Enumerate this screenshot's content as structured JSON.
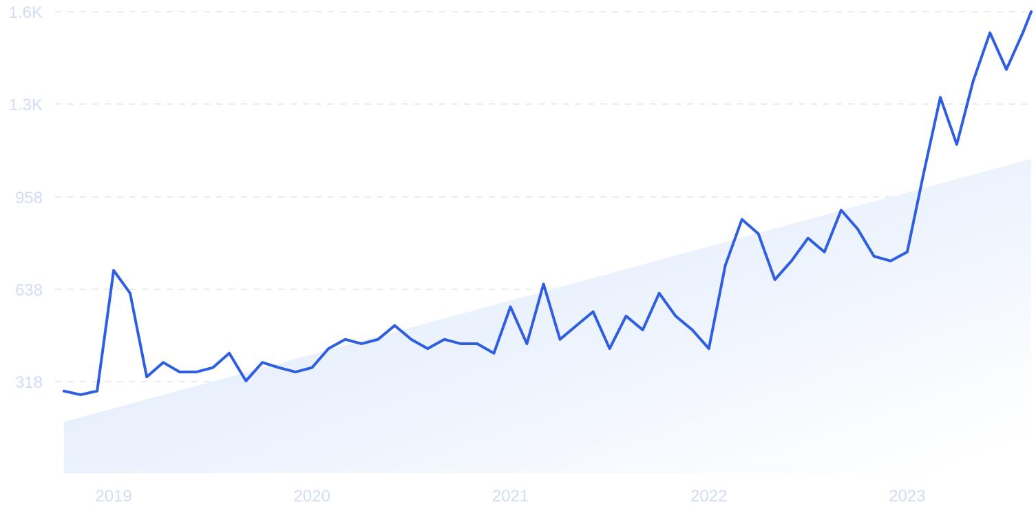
{
  "chart_data": {
    "type": "line",
    "title": "",
    "xlabel": "",
    "ylabel": "",
    "grid": true,
    "ylim": [
      0,
      1600
    ],
    "xlim": [
      2018.75,
      2023.625
    ],
    "y_ticks": [
      {
        "value": 318,
        "label": "318"
      },
      {
        "value": 638,
        "label": "638"
      },
      {
        "value": 958,
        "label": "958"
      },
      {
        "value": 1280,
        "label": "1.3K"
      },
      {
        "value": 1600,
        "label": "1.6K"
      }
    ],
    "x_ticks": [
      {
        "value": 2019,
        "label": "2019"
      },
      {
        "value": 2020,
        "label": "2020"
      },
      {
        "value": 2021,
        "label": "2021"
      },
      {
        "value": 2022,
        "label": "2022"
      },
      {
        "value": 2023,
        "label": "2023"
      }
    ],
    "trend": {
      "start_y": 178,
      "end_y": 1090
    },
    "series": [
      {
        "color": "#2f5ee0",
        "points": [
          [
            2018.75,
            285
          ],
          [
            2018.833,
            272
          ],
          [
            2018.917,
            285
          ],
          [
            2019.0,
            703
          ],
          [
            2019.083,
            624
          ],
          [
            2019.167,
            334
          ],
          [
            2019.25,
            384
          ],
          [
            2019.333,
            351
          ],
          [
            2019.417,
            351
          ],
          [
            2019.5,
            366
          ],
          [
            2019.583,
            416
          ],
          [
            2019.667,
            320
          ],
          [
            2019.75,
            384
          ],
          [
            2019.833,
            366
          ],
          [
            2019.917,
            351
          ],
          [
            2020.0,
            366
          ],
          [
            2020.083,
            432
          ],
          [
            2020.167,
            464
          ],
          [
            2020.25,
            449
          ],
          [
            2020.333,
            464
          ],
          [
            2020.417,
            512
          ],
          [
            2020.5,
            464
          ],
          [
            2020.583,
            432
          ],
          [
            2020.667,
            464
          ],
          [
            2020.75,
            449
          ],
          [
            2020.833,
            449
          ],
          [
            2020.917,
            416
          ],
          [
            2021.0,
            577
          ],
          [
            2021.083,
            449
          ],
          [
            2021.167,
            656
          ],
          [
            2021.25,
            464
          ],
          [
            2021.333,
            512
          ],
          [
            2021.417,
            560
          ],
          [
            2021.5,
            432
          ],
          [
            2021.583,
            545
          ],
          [
            2021.667,
            497
          ],
          [
            2021.75,
            624
          ],
          [
            2021.833,
            545
          ],
          [
            2021.917,
            497
          ],
          [
            2022.0,
            432
          ],
          [
            2022.083,
            720
          ],
          [
            2022.167,
            880
          ],
          [
            2022.25,
            830
          ],
          [
            2022.333,
            671
          ],
          [
            2022.417,
            736
          ],
          [
            2022.5,
            815
          ],
          [
            2022.583,
            767
          ],
          [
            2022.667,
            912
          ],
          [
            2022.75,
            847
          ],
          [
            2022.833,
            752
          ],
          [
            2022.917,
            736
          ],
          [
            2023.0,
            767
          ],
          [
            2023.083,
            1040
          ],
          [
            2023.167,
            1303
          ],
          [
            2023.25,
            1140
          ],
          [
            2023.333,
            1360
          ],
          [
            2023.417,
            1527
          ],
          [
            2023.5,
            1400
          ],
          [
            2023.583,
            1527
          ],
          [
            2023.625,
            1600
          ]
        ]
      }
    ]
  }
}
